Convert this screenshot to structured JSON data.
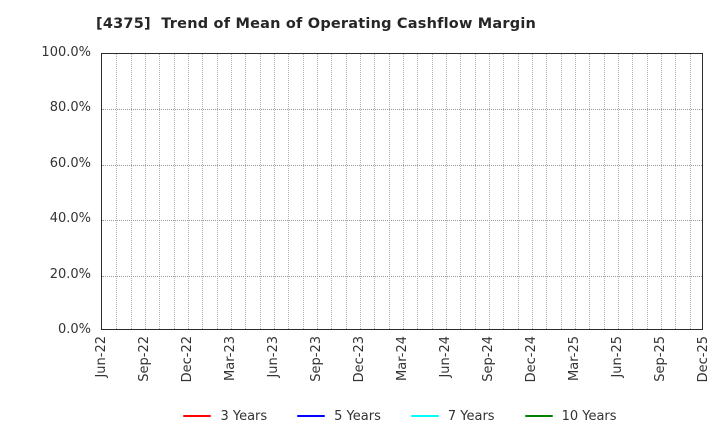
{
  "title": "[4375]  Trend of Mean of Operating Cashflow Margin",
  "chart_data": {
    "type": "line",
    "title": "[4375]  Trend of Mean of Operating Cashflow Margin",
    "x_axis": {
      "tick_labels": [
        "Jun-22",
        "Sep-22",
        "Dec-22",
        "Mar-23",
        "Jun-23",
        "Sep-23",
        "Dec-23",
        "Mar-24",
        "Jun-24",
        "Sep-24",
        "Dec-24",
        "Mar-25",
        "Jun-25",
        "Sep-25",
        "Dec-25"
      ],
      "tick_interval_months": 3,
      "minor_gridline_interval_months": 1,
      "total_month_intervals": 42,
      "tick_label_rotation_deg": 90
    },
    "y_axis": {
      "ticks": [
        0,
        20,
        40,
        60,
        80,
        100
      ],
      "tick_labels": [
        "0.0%",
        "20.0%",
        "40.0%",
        "60.0%",
        "80.0%",
        "100.0%"
      ],
      "lim": [
        0,
        100
      ]
    },
    "grid": {
      "visible": true,
      "style": "dotted",
      "vertical_color": "#b0b0b0",
      "horizontal_color": "#999999"
    },
    "series": [
      {
        "name": "3 Years",
        "color": "#ff0000",
        "values": []
      },
      {
        "name": "5 Years",
        "color": "#0000ff",
        "values": []
      },
      {
        "name": "7 Years",
        "color": "#00ffff",
        "values": []
      },
      {
        "name": "10 Years",
        "color": "#008000",
        "values": []
      }
    ],
    "legend": {
      "position": "bottom",
      "entries": [
        {
          "label": "3 Years",
          "color": "#ff0000"
        },
        {
          "label": "5 Years",
          "color": "#0000ff"
        },
        {
          "label": "7 Years",
          "color": "#00ffff"
        },
        {
          "label": "10 Years",
          "color": "#008000"
        }
      ]
    }
  }
}
